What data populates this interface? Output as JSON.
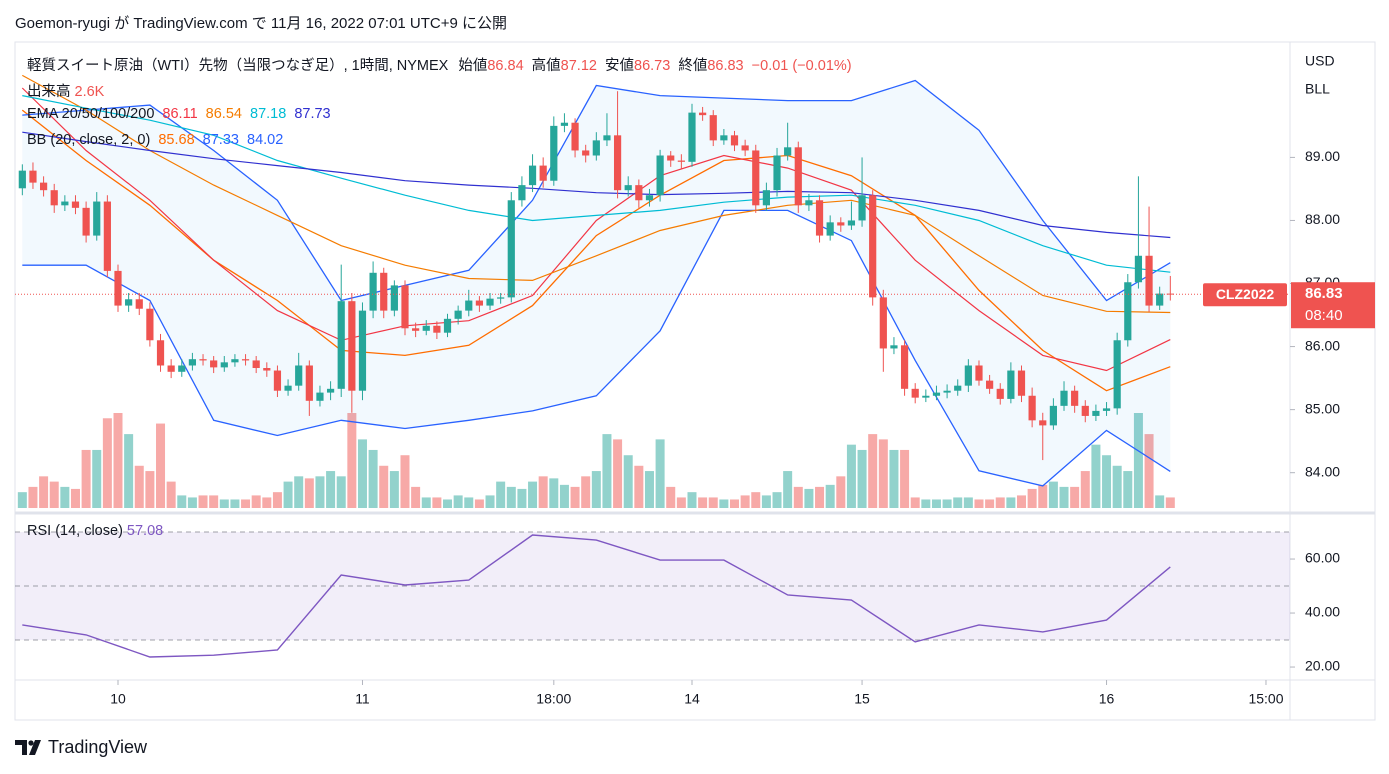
{
  "header": {
    "published": "Goemon-ryugi が TradingView.com で 11月 16, 2022 07:01 UTC+9 に公開"
  },
  "chart_data": {
    "type": "candlestick",
    "title": "軽質スイート原油（WTI）先物（当限つなぎ足）, 1時間, NYMEX",
    "ohlc_labels": [
      "始値",
      "高値",
      "安値",
      "終値"
    ],
    "change": {
      "value": -0.01,
      "label": "−0.01"
    },
    "change_pct": {
      "value": -0.01,
      "label": "(−0.01%)"
    },
    "up_color": "#26a69a",
    "down_color": "#ef5350",
    "open": [
      88.51,
      88.79,
      88.6,
      88.48,
      88.24,
      88.3,
      88.2,
      87.76,
      88.3,
      87.2,
      86.65,
      86.75,
      86.6,
      86.1,
      85.7,
      85.6,
      85.7,
      85.8,
      85.78,
      85.67,
      85.75,
      85.8,
      85.78,
      85.66,
      85.62,
      85.3,
      85.38,
      85.7,
      85.14,
      85.27,
      85.33,
      86.72,
      85.3,
      86.57,
      87.17,
      86.57,
      86.97,
      86.29,
      86.25,
      86.33,
      86.22,
      86.44,
      86.57,
      86.73,
      86.65,
      86.76,
      86.78,
      88.32,
      88.56,
      88.87,
      88.63,
      89.5,
      89.55,
      89.11,
      89.03,
      89.27,
      89.35,
      88.48,
      88.56,
      88.32,
      88.4,
      89.03,
      88.95,
      88.93,
      89.71,
      89.67,
      89.27,
      89.35,
      89.19,
      89.11,
      88.24,
      88.48,
      89.03,
      89.16,
      88.24,
      88.32,
      87.76,
      87.97,
      87.92,
      88.0,
      88.4,
      86.78,
      85.97,
      86.02,
      85.33,
      85.19,
      85.22,
      85.27,
      85.3,
      85.38,
      85.7,
      85.46,
      85.33,
      85.17,
      85.62,
      85.22,
      84.83,
      84.75,
      85.06,
      85.3,
      85.06,
      84.9,
      84.98,
      85.02,
      86.1,
      87.02,
      87.44,
      86.65,
      86.84
    ],
    "high": [
      88.89,
      88.92,
      88.7,
      88.58,
      88.4,
      88.4,
      88.3,
      88.45,
      88.4,
      87.3,
      86.85,
      86.85,
      86.7,
      86.2,
      85.8,
      85.8,
      85.9,
      85.88,
      85.85,
      85.85,
      85.88,
      85.88,
      85.85,
      85.75,
      85.7,
      85.48,
      85.9,
      85.78,
      85.38,
      85.45,
      87.3,
      86.85,
      86.7,
      87.35,
      87.25,
      87.05,
      87.05,
      86.38,
      86.42,
      86.4,
      86.52,
      86.65,
      86.9,
      86.8,
      86.85,
      86.85,
      88.45,
      88.7,
      89.05,
      89.0,
      89.65,
      89.7,
      89.62,
      89.2,
      89.4,
      89.7,
      90.05,
      88.7,
      88.65,
      88.5,
      89.12,
      89.1,
      89.05,
      89.85,
      89.8,
      89.75,
      89.45,
      89.42,
      89.28,
      89.2,
      88.6,
      89.15,
      89.55,
      89.25,
      88.42,
      88.4,
      88.08,
      88.05,
      88.3,
      89.0,
      88.48,
      86.9,
      86.15,
      86.1,
      85.42,
      85.32,
      85.38,
      85.4,
      85.48,
      85.8,
      85.78,
      85.55,
      85.42,
      85.75,
      85.7,
      85.35,
      84.95,
      85.18,
      85.45,
      85.38,
      85.15,
      85.08,
      85.12,
      86.22,
      87.15,
      88.7,
      88.22,
      86.95,
      87.12
    ],
    "low": [
      88.4,
      88.5,
      88.38,
      88.12,
      88.15,
      88.1,
      87.65,
      87.68,
      87.1,
      86.55,
      86.55,
      86.5,
      86.0,
      85.6,
      85.5,
      85.52,
      85.62,
      85.7,
      85.58,
      85.6,
      85.68,
      85.7,
      85.58,
      85.52,
      85.2,
      85.22,
      85.3,
      84.9,
      85.05,
      85.15,
      85.2,
      84.95,
      85.15,
      86.45,
      86.45,
      86.48,
      86.18,
      86.15,
      86.18,
      86.12,
      86.15,
      86.35,
      86.48,
      86.55,
      86.58,
      86.68,
      86.7,
      88.22,
      88.45,
      88.52,
      88.55,
      89.4,
      89.0,
      88.92,
      88.95,
      89.18,
      88.35,
      88.38,
      88.2,
      88.22,
      88.3,
      88.85,
      88.82,
      88.85,
      89.58,
      89.18,
      89.2,
      89.1,
      89.02,
      88.12,
      88.15,
      88.38,
      88.95,
      88.12,
      88.15,
      87.65,
      87.68,
      87.82,
      87.85,
      87.9,
      86.65,
      85.6,
      85.88,
      85.22,
      85.1,
      85.12,
      85.15,
      85.18,
      85.22,
      85.28,
      85.38,
      85.25,
      85.08,
      85.1,
      85.12,
      84.72,
      84.2,
      84.68,
      84.98,
      84.95,
      84.8,
      84.82,
      84.9,
      84.92,
      86.0,
      86.92,
      86.55,
      86.58,
      86.73
    ],
    "close": [
      88.79,
      88.6,
      88.48,
      88.24,
      88.3,
      88.2,
      87.76,
      88.3,
      87.2,
      86.65,
      86.75,
      86.6,
      86.1,
      85.7,
      85.6,
      85.7,
      85.8,
      85.78,
      85.67,
      85.75,
      85.8,
      85.78,
      85.66,
      85.62,
      85.3,
      85.38,
      85.7,
      85.14,
      85.27,
      85.33,
      86.72,
      85.3,
      86.57,
      87.17,
      86.57,
      86.97,
      86.29,
      86.25,
      86.33,
      86.22,
      86.44,
      86.57,
      86.73,
      86.65,
      86.76,
      86.78,
      88.32,
      88.56,
      88.87,
      88.63,
      89.5,
      89.55,
      89.11,
      89.03,
      89.27,
      89.35,
      88.48,
      88.56,
      88.32,
      88.4,
      89.03,
      88.95,
      88.93,
      89.71,
      89.67,
      89.27,
      89.35,
      89.19,
      89.11,
      88.24,
      88.48,
      89.03,
      89.16,
      88.24,
      88.32,
      87.76,
      87.97,
      87.92,
      88.0,
      88.4,
      86.78,
      85.97,
      86.02,
      85.33,
      85.19,
      85.22,
      85.27,
      85.3,
      85.38,
      85.7,
      85.46,
      85.33,
      85.17,
      85.62,
      85.22,
      84.83,
      84.75,
      85.06,
      85.3,
      85.06,
      84.9,
      84.98,
      85.02,
      86.1,
      87.02,
      87.44,
      86.65,
      86.84,
      86.83
    ],
    "volume": {
      "name": "出来高",
      "legend": {
        "value": 2600,
        "label": "2.6K"
      },
      "values": [
        3900,
        5200,
        7800,
        6500,
        5200,
        4700,
        14300,
        14300,
        22100,
        23400,
        18200,
        10400,
        9100,
        20800,
        6500,
        3100,
        2600,
        3100,
        3100,
        2100,
        2100,
        2100,
        3100,
        2600,
        3900,
        6500,
        7800,
        7300,
        7800,
        9100,
        7800,
        23400,
        16900,
        14300,
        10400,
        9100,
        13000,
        5200,
        2600,
        2600,
        2100,
        3100,
        2600,
        2100,
        3100,
        6500,
        5200,
        4700,
        6500,
        7800,
        7300,
        5700,
        5200,
        7800,
        9100,
        18200,
        16900,
        13000,
        10400,
        9100,
        16900,
        5200,
        2600,
        3900,
        2600,
        2600,
        2100,
        2100,
        3100,
        3900,
        3100,
        3900,
        9100,
        5200,
        4700,
        5200,
        5700,
        7800,
        15600,
        14300,
        18200,
        16900,
        14300,
        14300,
        2600,
        2100,
        2100,
        2100,
        2600,
        2600,
        2100,
        2100,
        2600,
        2600,
        3100,
        4700,
        5700,
        6500,
        5200,
        5200,
        9100,
        15600,
        13000,
        10400,
        9100,
        23400,
        18200,
        3100,
        2600
      ]
    },
    "xlim": [
      -0.69,
      119.26
    ],
    "xticks": [
      {
        "value": 9,
        "label": "10"
      },
      {
        "value": 32,
        "label": "11"
      },
      {
        "value": 50,
        "label": "18:00"
      },
      {
        "value": 63,
        "label": "14"
      },
      {
        "value": 79,
        "label": "15"
      },
      {
        "value": 102,
        "label": "16"
      },
      {
        "value": 117,
        "label": "15:00"
      }
    ],
    "ylim": [
      83.44,
      90.83
    ],
    "yticks": [
      {
        "value": 84,
        "label": "84.00"
      },
      {
        "value": 85,
        "label": "85.00"
      },
      {
        "value": 86,
        "label": "86.00"
      },
      {
        "value": 87,
        "label": "87.00"
      },
      {
        "value": 88,
        "label": "88.00"
      },
      {
        "value": 89,
        "label": "89.00"
      }
    ],
    "grid": false,
    "currency": "USD",
    "unit": "BLL",
    "symbol": "CLZ2022",
    "countdown": "08:40",
    "ema": {
      "label": "EMA 20/50/100/200",
      "x": [
        0,
        6,
        12,
        18,
        24,
        30,
        36,
        42,
        48,
        54,
        60,
        66,
        72,
        78,
        84,
        90,
        96,
        102,
        108
      ],
      "series": [
        {
          "color": "#f23645",
          "values": [
            90.1,
            89.11,
            88.32,
            87.37,
            86.57,
            86.1,
            86.33,
            86.41,
            86.81,
            88.0,
            88.71,
            89.03,
            88.83,
            88.48,
            87.37,
            86.57,
            85.86,
            85.62,
            86.11
          ]
        },
        {
          "color": "#f57c00",
          "values": [
            90.3,
            89.75,
            89.11,
            88.56,
            88.08,
            87.6,
            87.29,
            87.08,
            87.05,
            87.44,
            87.84,
            88.08,
            88.24,
            88.32,
            88.08,
            87.44,
            86.81,
            86.56,
            86.54
          ]
        },
        {
          "color": "#00bcd4",
          "values": [
            89.98,
            89.78,
            89.59,
            89.35,
            88.95,
            88.67,
            88.4,
            88.16,
            88.0,
            88.08,
            88.16,
            88.29,
            88.37,
            88.4,
            88.24,
            88.0,
            87.6,
            87.29,
            87.18
          ]
        },
        {
          "color": "#3030d0",
          "values": [
            89.4,
            89.25,
            89.11,
            88.98,
            88.87,
            88.76,
            88.63,
            88.56,
            88.51,
            88.44,
            88.41,
            88.43,
            88.46,
            88.44,
            88.32,
            88.16,
            87.92,
            87.81,
            87.73
          ]
        }
      ]
    },
    "bb": {
      "label": "BB (20, close, 2, 0)",
      "fill": "#2196f3",
      "x": [
        0,
        6,
        12,
        18,
        24,
        30,
        36,
        42,
        48,
        54,
        60,
        66,
        72,
        78,
        84,
        90,
        96,
        102,
        108
      ],
      "series": [
        {
          "color": "#ff6d00",
          "values": [
            89.75,
            88.95,
            88.24,
            87.37,
            86.73,
            85.94,
            85.86,
            86.02,
            86.65,
            87.76,
            88.4,
            88.95,
            89.03,
            88.71,
            88.08,
            86.89,
            85.94,
            85.3,
            85.68
          ]
        },
        {
          "color": "#2962ff",
          "values": [
            89.67,
            89.75,
            89.83,
            89.11,
            88.32,
            86.73,
            86.97,
            87.21,
            88.32,
            90.14,
            89.98,
            89.94,
            89.9,
            89.9,
            90.22,
            89.43,
            88.0,
            86.73,
            87.33
          ]
        },
        {
          "color": "#2962ff",
          "values": [
            87.29,
            87.29,
            86.73,
            84.83,
            84.59,
            84.83,
            84.7,
            84.83,
            84.98,
            85.22,
            86.25,
            88.16,
            88.16,
            87.68,
            85.78,
            84.03,
            83.79,
            84.67,
            84.02
          ]
        }
      ]
    },
    "rsi": {
      "label": "RSI (14, close)",
      "color": "#7e57c2",
      "x": [
        0,
        6,
        12,
        18,
        24,
        30,
        36,
        42,
        48,
        54,
        60,
        66,
        72,
        78,
        84,
        90,
        96,
        102,
        108
      ],
      "values": [
        35.6,
        31.9,
        23.7,
        24.4,
        26.3,
        54.1,
        50.4,
        52.2,
        68.9,
        67.0,
        59.6,
        59.6,
        46.7,
        44.8,
        29.3,
        35.6,
        33.0,
        37.4,
        57.08
      ],
      "ylim": [
        15.2,
        75.2
      ],
      "yticks": [
        {
          "value": 20,
          "label": "20.00"
        },
        {
          "value": 40,
          "label": "40.00"
        },
        {
          "value": 60,
          "label": "60.00"
        }
      ],
      "levels": [
        70,
        50,
        30
      ]
    }
  },
  "footer": {
    "brand": "TradingView"
  }
}
